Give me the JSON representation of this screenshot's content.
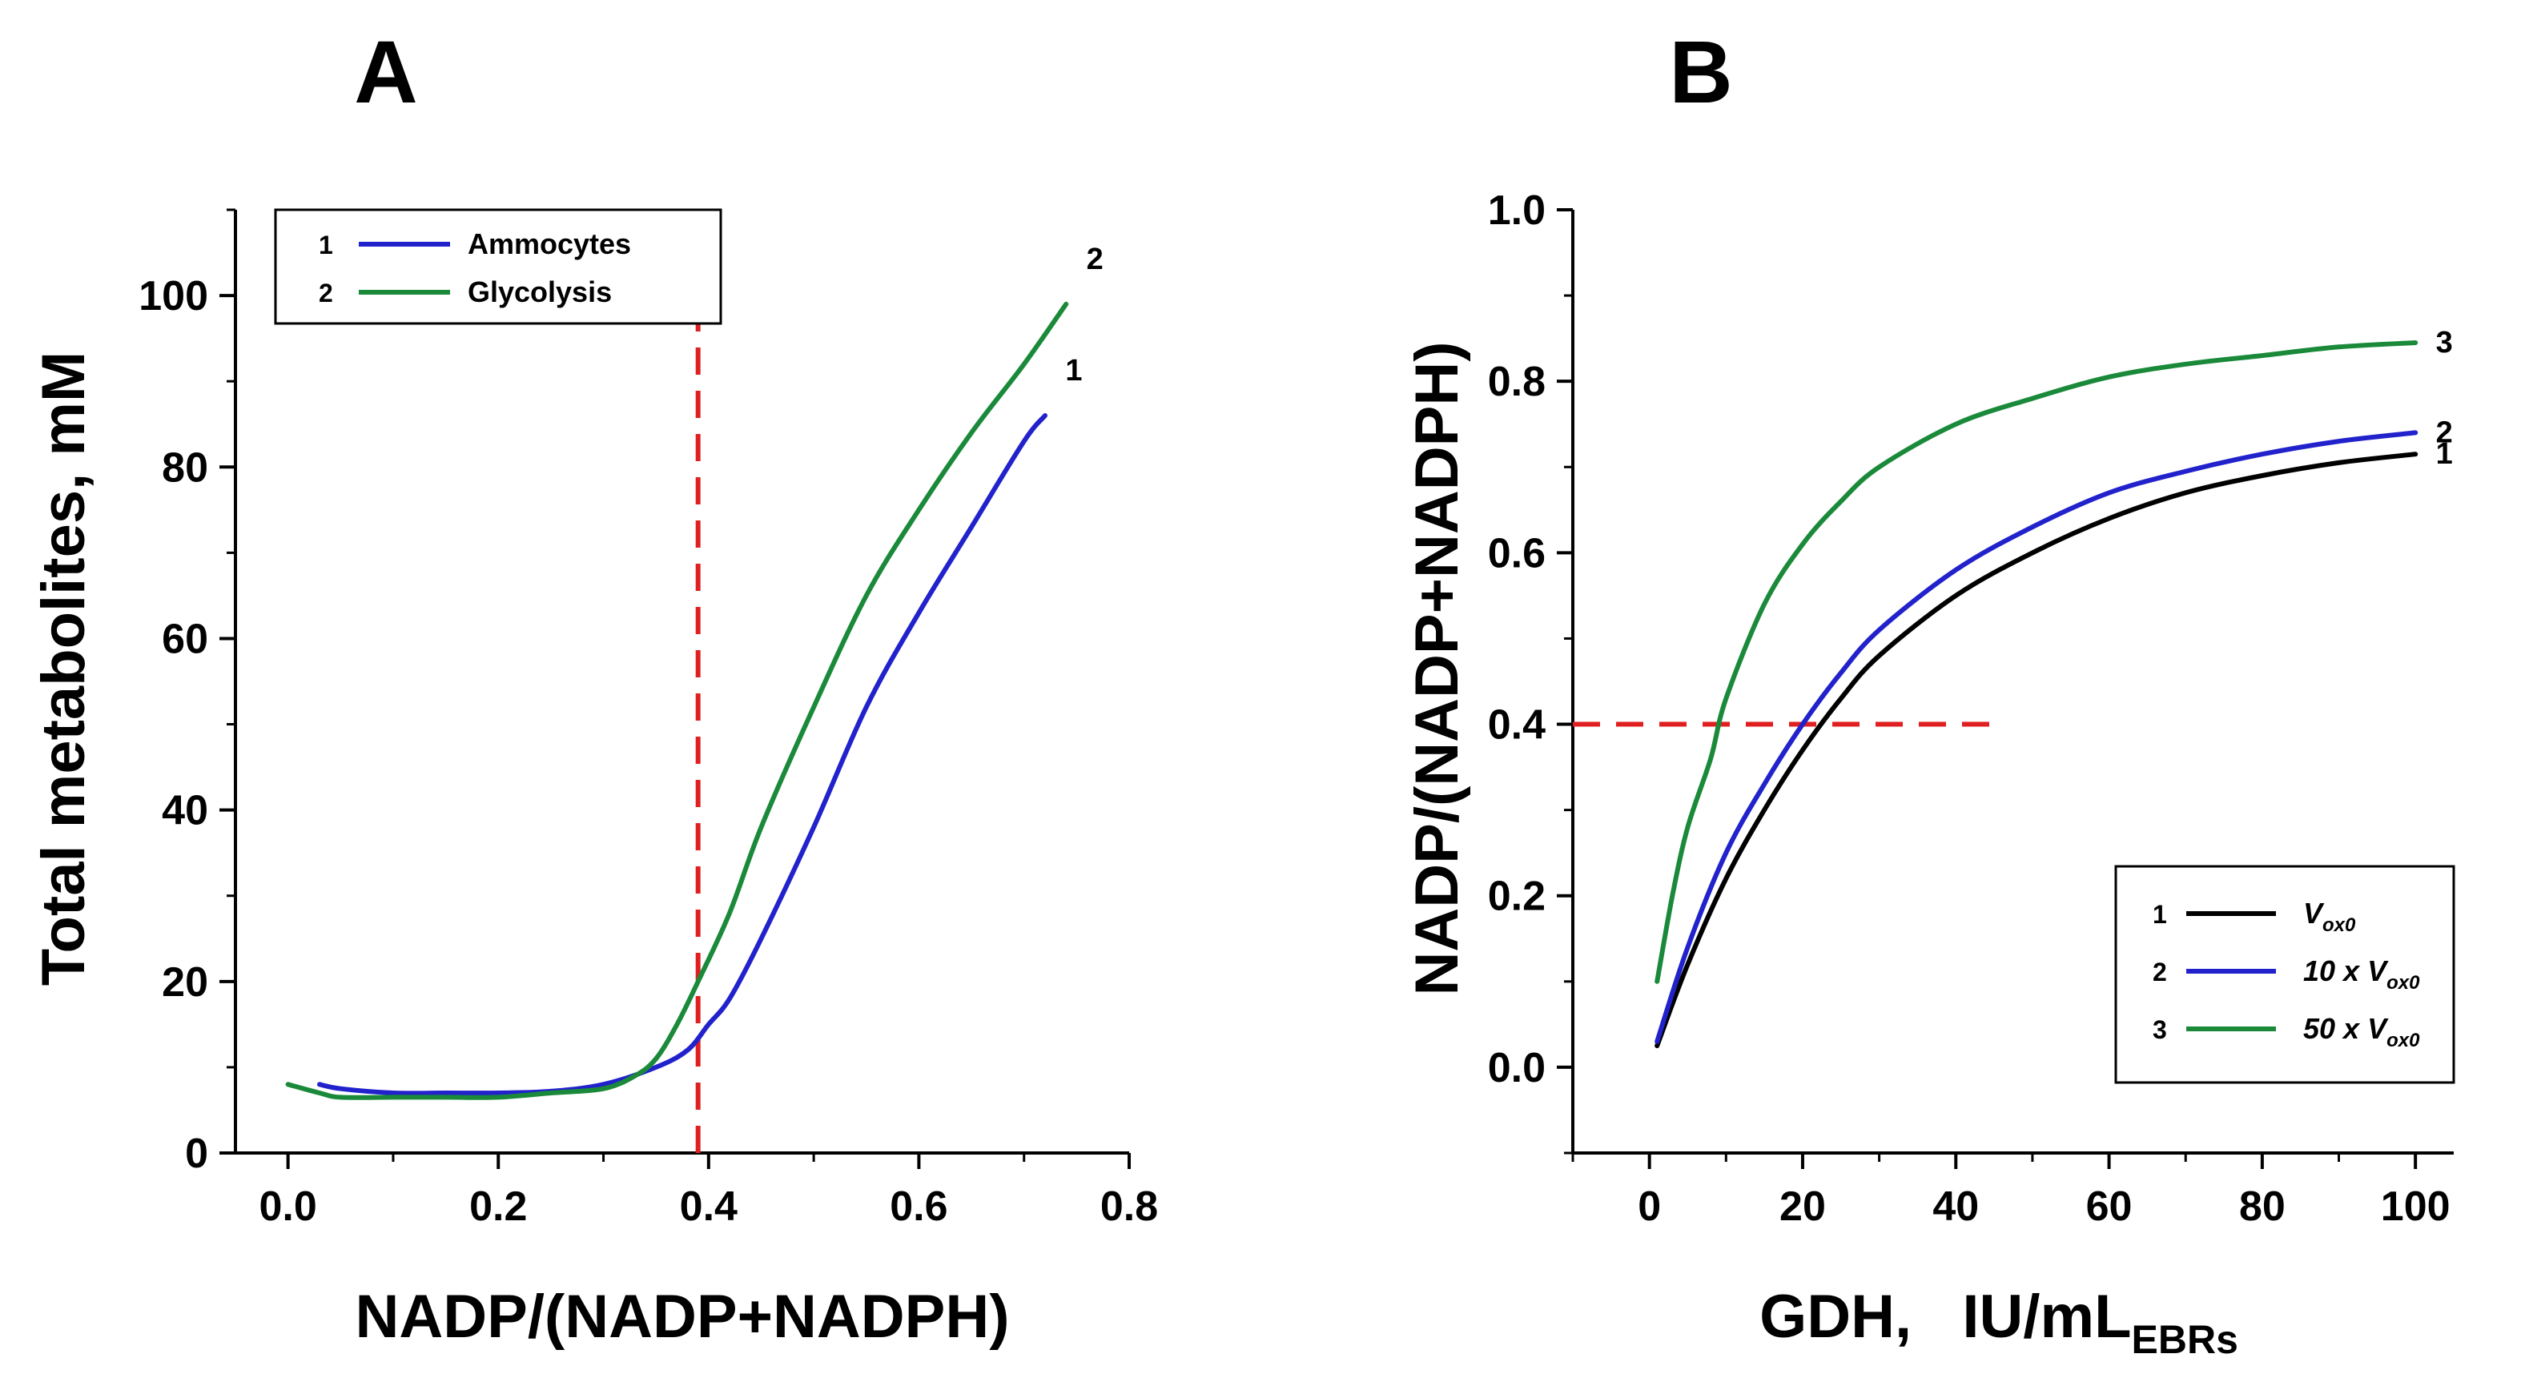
{
  "chart_data": [
    {
      "panel": "A",
      "type": "line",
      "xlabel": "NADP/(NADP+NADPH)",
      "ylabel": "Total metabolites,   mM",
      "xlim": [
        -0.05,
        0.8
      ],
      "ylim": [
        0,
        110
      ],
      "x_ticks": [
        "0.0",
        "0.2",
        "0.4",
        "0.6",
        "0.8"
      ],
      "y_ticks": [
        "0",
        "20",
        "40",
        "60",
        "80",
        "100"
      ],
      "legend_position": "top-left",
      "series": [
        {
          "id": "1",
          "name": "Ammocytes",
          "color": "#2222cc",
          "x": [
            0.03,
            0.05,
            0.1,
            0.15,
            0.2,
            0.25,
            0.3,
            0.35,
            0.38,
            0.4,
            0.42,
            0.45,
            0.5,
            0.55,
            0.6,
            0.65,
            0.7,
            0.72
          ],
          "y": [
            8,
            7.5,
            7,
            7,
            7,
            7.2,
            8,
            10,
            12,
            15,
            18,
            25,
            38,
            52,
            63,
            73,
            83,
            86
          ]
        },
        {
          "id": "2",
          "name": "Glycolysis",
          "color": "#1a8a3a",
          "x": [
            0.0,
            0.03,
            0.05,
            0.1,
            0.15,
            0.2,
            0.25,
            0.3,
            0.33,
            0.35,
            0.37,
            0.39,
            0.42,
            0.45,
            0.5,
            0.55,
            0.6,
            0.65,
            0.7,
            0.74
          ],
          "y": [
            8,
            7,
            6.5,
            6.5,
            6.5,
            6.5,
            7,
            7.5,
            9,
            11,
            15,
            20,
            28,
            38,
            52,
            65,
            75,
            84,
            92,
            99
          ]
        }
      ],
      "reference_line": {
        "orientation": "vertical",
        "value": 0.39,
        "color": "#e02020",
        "style": "dashed"
      }
    },
    {
      "panel": "B",
      "type": "line",
      "xlabel": "GDH,   IU/mL",
      "xlabel_subscript": "EBRs",
      "ylabel": "NADP/(NADP+NADPH)",
      "xlim": [
        -10,
        105
      ],
      "ylim": [
        -0.1,
        1.0
      ],
      "x_ticks": [
        "0",
        "20",
        "40",
        "60",
        "80",
        "100"
      ],
      "y_ticks": [
        "0.0",
        "0.2",
        "0.4",
        "0.6",
        "0.8",
        "1.0"
      ],
      "legend_position": "bottom-right",
      "series": [
        {
          "id": "1",
          "name": "V",
          "name_subscript": "ox0",
          "color": "#000000",
          "x": [
            1,
            5,
            10,
            15,
            20,
            25,
            30,
            40,
            50,
            60,
            70,
            80,
            90,
            100
          ],
          "y": [
            0.025,
            0.12,
            0.22,
            0.3,
            0.37,
            0.43,
            0.48,
            0.55,
            0.6,
            0.64,
            0.67,
            0.69,
            0.705,
            0.715
          ]
        },
        {
          "id": "2",
          "name": "10 x V",
          "name_subscript": "ox0",
          "color": "#2222cc",
          "x": [
            1,
            5,
            10,
            15,
            20,
            25,
            30,
            40,
            50,
            60,
            70,
            80,
            90,
            100
          ],
          "y": [
            0.03,
            0.14,
            0.25,
            0.33,
            0.4,
            0.46,
            0.51,
            0.58,
            0.63,
            0.67,
            0.695,
            0.715,
            0.73,
            0.74
          ]
        },
        {
          "id": "3",
          "name": "50 x V",
          "name_subscript": "ox0",
          "color": "#1a8a3a",
          "x": [
            1,
            3,
            5,
            8,
            10,
            15,
            20,
            25,
            30,
            40,
            50,
            60,
            70,
            80,
            90,
            100
          ],
          "y": [
            0.1,
            0.2,
            0.28,
            0.36,
            0.43,
            0.54,
            0.61,
            0.66,
            0.7,
            0.75,
            0.78,
            0.805,
            0.82,
            0.83,
            0.84,
            0.845
          ]
        }
      ],
      "reference_line": {
        "orientation": "horizontal",
        "value": 0.4,
        "x_range": [
          -10,
          45
        ],
        "color": "#e02020",
        "style": "dashed"
      }
    }
  ]
}
